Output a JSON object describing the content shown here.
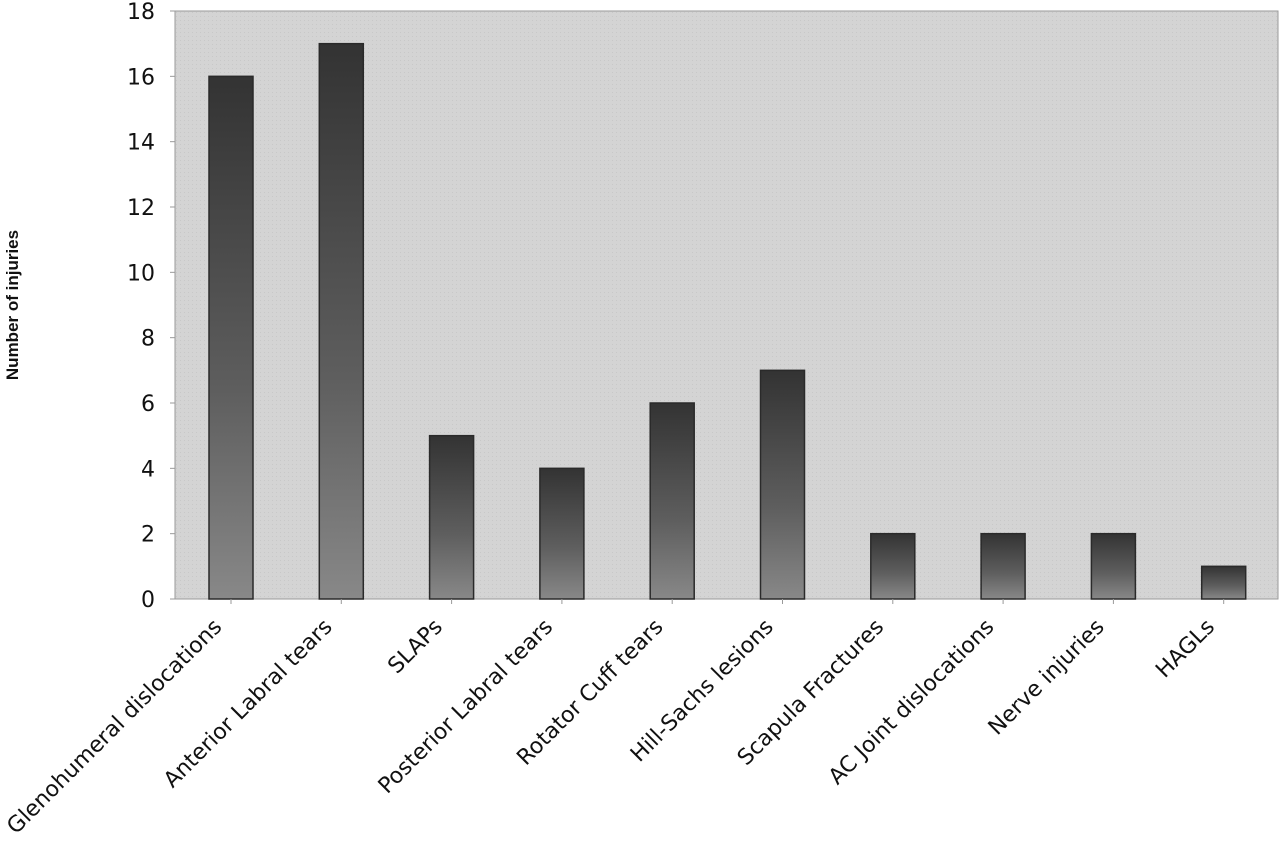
{
  "chart_data": {
    "type": "bar",
    "title": "",
    "xlabel": "",
    "ylabel": "Number of injuries",
    "categories": [
      "Glenohumeral dislocations",
      "Anterior Labral tears",
      "SLAPs",
      "Posterior Labral tears",
      "Rotator Cuff tears",
      "Hill-Sachs lesions",
      "Scapula Fractures",
      "AC Joint dislocations",
      "Nerve injuries",
      "HAGLs"
    ],
    "values": [
      16,
      17,
      5,
      4,
      6,
      7,
      2,
      2,
      2,
      1
    ],
    "ylim": [
      0,
      18
    ],
    "yticks": [
      0,
      2,
      4,
      6,
      8,
      10,
      12,
      14,
      16,
      18
    ],
    "grid": false,
    "legend": "none",
    "colors": {
      "plot_background": "#d4d4d4",
      "bar_top": "#333333",
      "bar_bottom": "#888888",
      "bar_stroke": "#2a2a2a",
      "axis": "#9a9a9a"
    }
  }
}
